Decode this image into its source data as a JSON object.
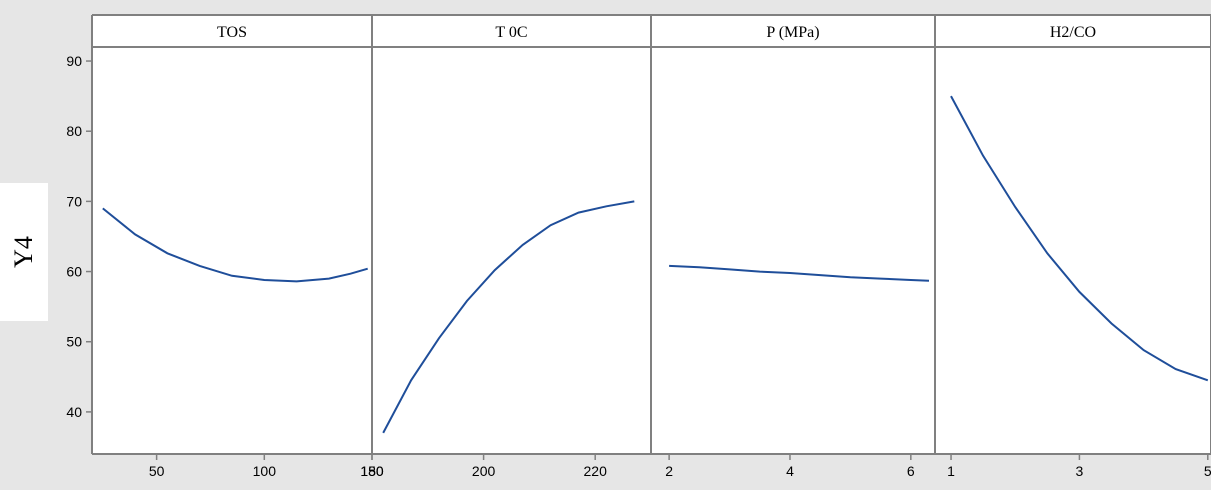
{
  "chart_data": {
    "type": "line",
    "ylabel": "Y4",
    "ylim": [
      34,
      92
    ],
    "yticks": [
      40,
      50,
      60,
      70,
      80,
      90
    ],
    "line_color": "#1f4e9a",
    "background": "#e6e6e6",
    "panels": [
      {
        "title": "TOS",
        "xlim": [
          20,
          150
        ],
        "xticks": [
          50,
          100,
          150
        ],
        "xtick_labels": [
          "50",
          "100",
          "150"
        ],
        "x": [
          25,
          40,
          55,
          70,
          85,
          100,
          115,
          130,
          140,
          148
        ],
        "y": [
          69.0,
          65.3,
          62.6,
          60.8,
          59.4,
          58.8,
          58.6,
          59.0,
          59.7,
          60.4
        ]
      },
      {
        "title": "T  0C",
        "xlim": [
          180,
          230
        ],
        "xticks": [
          180,
          200,
          220
        ],
        "xtick_labels": [
          "180",
          "200",
          "220"
        ],
        "x": [
          182,
          187,
          192,
          197,
          202,
          207,
          212,
          217,
          222,
          227
        ],
        "y": [
          37.0,
          44.5,
          50.5,
          55.8,
          60.2,
          63.8,
          66.6,
          68.4,
          69.3,
          70.0
        ]
      },
      {
        "title": "P (MPa)",
        "xlim": [
          1.7,
          6.4
        ],
        "xticks": [
          2,
          4,
          6
        ],
        "xtick_labels": [
          "2",
          "4",
          "6"
        ],
        "x": [
          2,
          2.5,
          3,
          3.5,
          4,
          4.5,
          5,
          5.5,
          6,
          6.3
        ],
        "y": [
          60.8,
          60.6,
          60.3,
          60.0,
          59.8,
          59.5,
          59.2,
          59.0,
          58.8,
          58.7
        ]
      },
      {
        "title": "H2/CO",
        "xlim": [
          0.75,
          5.05
        ],
        "xticks": [
          1,
          3,
          5
        ],
        "xtick_labels": [
          "1",
          "3",
          "5"
        ],
        "x": [
          1.0,
          1.5,
          2.0,
          2.5,
          3.0,
          3.5,
          4.0,
          4.5,
          5.0
        ],
        "y": [
          85.0,
          76.5,
          69.2,
          62.6,
          57.1,
          52.6,
          48.8,
          46.1,
          44.5
        ]
      }
    ]
  }
}
